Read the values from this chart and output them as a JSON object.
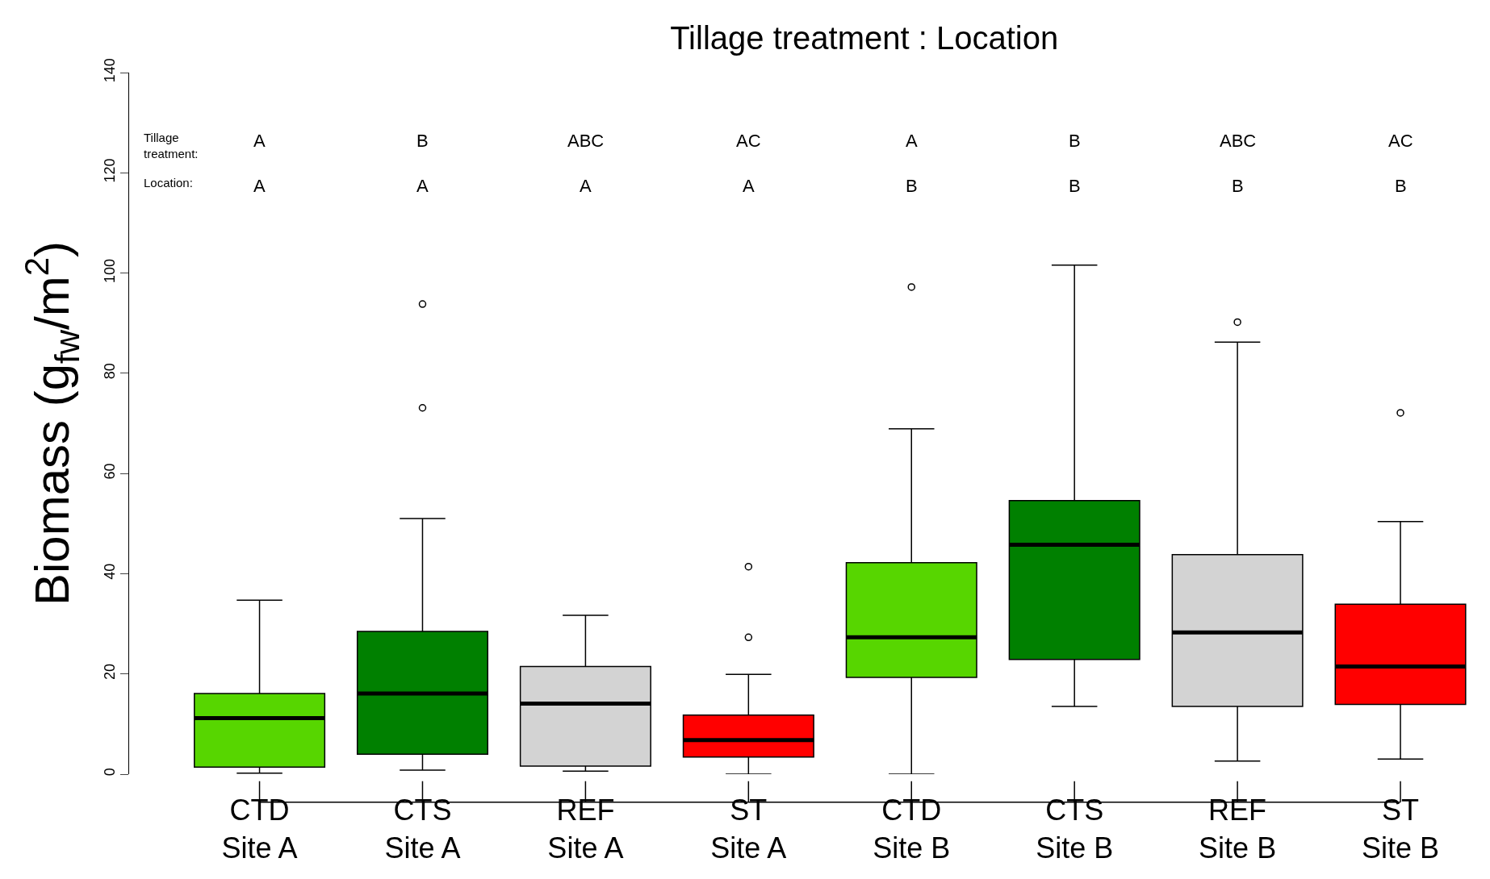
{
  "chart_data": {
    "type": "box",
    "title": "Tillage treatment : Location",
    "ylabel": "Biomass (g$_{fw}$/m$^{2}$)",
    "categories": [
      "CTD\nSite A",
      "CTS\nSite A",
      "REF\nSite A",
      "ST\nSite A",
      "CTD\nSite B",
      "CTS\nSite B",
      "REF\nSite B",
      "ST\nSite B"
    ],
    "colors": [
      "#57d600",
      "#008000",
      "#d3d3d3",
      "#ff0000",
      "#57d600",
      "#008000",
      "#d3d3d3",
      "#ff0000"
    ],
    "boxes": [
      {
        "low": 0.2,
        "q1": 1.4,
        "median": 11.2,
        "q3": 16.1,
        "high": 34.7
      },
      {
        "low": 0.8,
        "q1": 4.0,
        "median": 16.1,
        "q3": 28.5,
        "high": 51.0,
        "outliers": [
          93.8,
          73.1
        ]
      },
      {
        "low": 0.6,
        "q1": 1.6,
        "median": 14.1,
        "q3": 21.5,
        "high": 31.7
      },
      {
        "low": 0,
        "q1": 3.4,
        "median": 6.8,
        "q3": 11.8,
        "high": 19.9,
        "outliers": [
          41.4,
          27.3
        ]
      },
      {
        "low": 0,
        "q1": 19.3,
        "median": 27.3,
        "q3": 42.2,
        "high": 68.9,
        "outliers": [
          97.2
        ]
      },
      {
        "low": 13.5,
        "q1": 22.9,
        "median": 45.8,
        "q3": 54.6,
        "high": 101.6
      },
      {
        "low": 2.6,
        "q1": 13.5,
        "median": 28.3,
        "q3": 43.8,
        "high": 86.2,
        "outliers": [
          90.2
        ]
      },
      {
        "low": 3.0,
        "q1": 13.9,
        "median": 21.5,
        "q3": 33.9,
        "high": 50.4,
        "outliers": [
          72.1
        ]
      }
    ],
    "ylim": [
      0,
      140
    ],
    "yticks": [
      0,
      20,
      40,
      60,
      80,
      100,
      120,
      140
    ],
    "annotations": [
      "Tillage\ntreatment:",
      "Location:",
      "A",
      "B",
      "ABC",
      "AC",
      "A",
      "B",
      "ABC",
      "AC",
      "A",
      "A",
      "A",
      "A",
      "B",
      "B",
      "B",
      "B"
    ]
  }
}
